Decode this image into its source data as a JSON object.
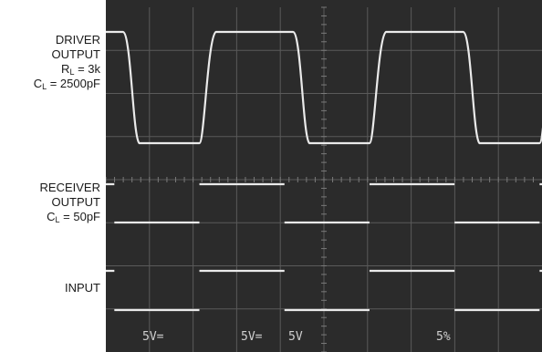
{
  "chart_data": {
    "type": "line",
    "channels": [
      {
        "name": "driver_output",
        "label_lines": [
          "DRIVER",
          "OUTPUT"
        ],
        "params": [
          {
            "sym": "R",
            "sub": "L",
            "val": " = 3k"
          },
          {
            "sym": "C",
            "sub": "L",
            "val": " = 2500pF"
          }
        ],
        "waveform": "square-with-slew",
        "period_div": 3.9,
        "duty": 0.55
      },
      {
        "name": "receiver_output",
        "label_lines": [
          "RECEIVER",
          "OUTPUT"
        ],
        "params": [
          {
            "sym": "C",
            "sub": "L",
            "val": " = 50pF"
          }
        ],
        "waveform": "square",
        "period_div": 3.9,
        "duty": 0.5
      },
      {
        "name": "input",
        "label_lines": [
          "INPUT"
        ],
        "params": [],
        "waveform": "square",
        "period_div": 3.9,
        "duty": 0.5
      }
    ],
    "scale_labels": [
      "5V=",
      "5V=",
      "5V",
      "5%"
    ],
    "grid": true,
    "x_divisions": 10,
    "y_divisions": 8
  }
}
